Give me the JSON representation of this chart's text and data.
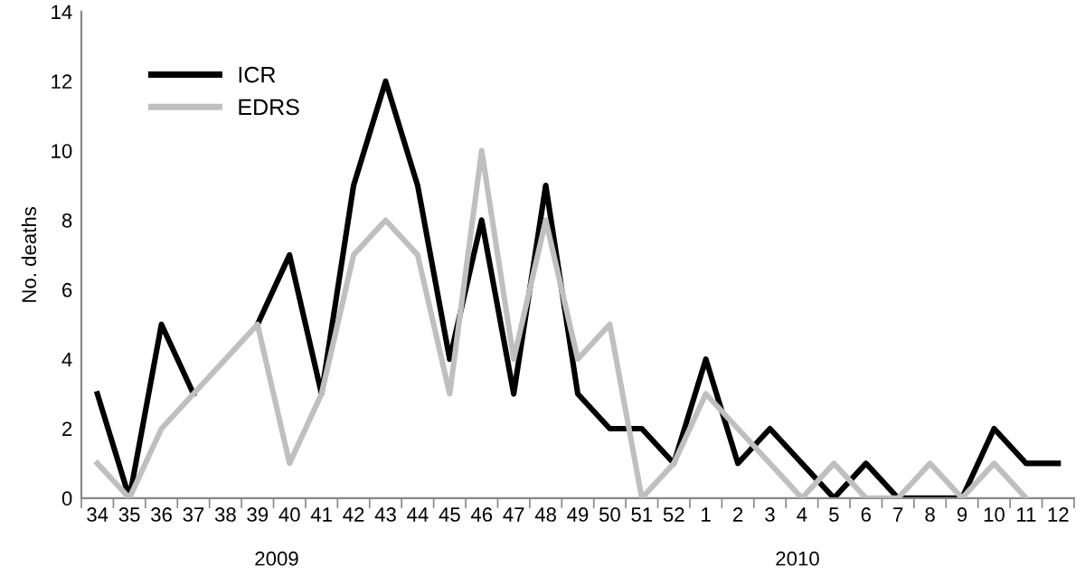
{
  "chart_data": {
    "type": "line",
    "ylabel": "No. deaths",
    "categories": [
      "34",
      "35",
      "36",
      "37",
      "38",
      "39",
      "40",
      "41",
      "42",
      "43",
      "44",
      "45",
      "46",
      "47",
      "48",
      "49",
      "50",
      "51",
      "52",
      "1",
      "2",
      "3",
      "4",
      "5",
      "6",
      "7",
      "8",
      "9",
      "10",
      "11",
      "12"
    ],
    "series": [
      {
        "name": "ICR",
        "color": "#000000",
        "values": [
          3,
          0,
          5,
          3,
          null,
          5,
          7,
          3,
          9,
          12,
          9,
          4,
          8,
          3,
          9,
          3,
          2,
          2,
          1,
          4,
          1,
          2,
          1,
          0,
          1,
          0,
          0,
          0,
          2,
          1,
          1
        ]
      },
      {
        "name": "EDRS",
        "color": "#bfbfbf",
        "values": [
          1,
          0,
          2,
          3,
          4,
          5,
          1,
          3,
          7,
          8,
          7,
          3,
          10,
          4,
          8,
          4,
          5,
          0,
          1,
          3,
          2,
          1,
          0,
          1,
          0,
          0,
          1,
          0,
          1,
          0,
          null
        ]
      }
    ],
    "ylim": [
      0,
      14
    ],
    "yticks": [
      0,
      2,
      4,
      6,
      8,
      10,
      12,
      14
    ],
    "grid": false,
    "legend": "top left",
    "marker": "none",
    "line_style": "solid",
    "annotations": [
      "2009",
      "2010"
    ]
  }
}
